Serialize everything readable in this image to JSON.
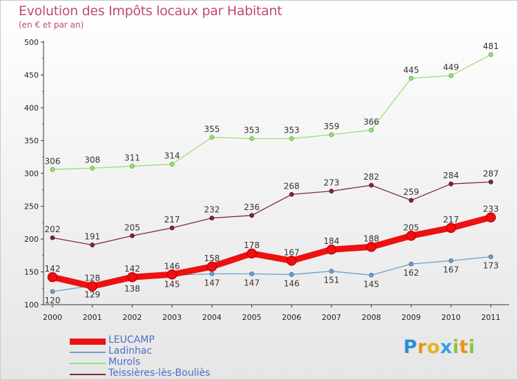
{
  "header": {
    "title": "Evolution des Impôts locaux par Habitant",
    "subtitle": "(en € et par an)"
  },
  "chart_data": {
    "type": "line",
    "title": "Evolution des Impôts locaux par Habitant",
    "subtitle": "(en € et par an)",
    "xlabel": "",
    "ylabel": "",
    "x": [
      "2000",
      "2001",
      "2002",
      "2003",
      "2004",
      "2005",
      "2006",
      "2007",
      "2008",
      "2009",
      "2010",
      "2011"
    ],
    "ylim": [
      100,
      500
    ],
    "yticks": [
      100,
      150,
      200,
      250,
      300,
      350,
      400,
      450,
      500
    ],
    "grid": false,
    "legend_position": "bottom-left",
    "series": [
      {
        "name": "LEUCAMP",
        "color": "#ee1111",
        "values": [
          142,
          128,
          142,
          146,
          158,
          178,
          167,
          184,
          188,
          205,
          217,
          233
        ]
      },
      {
        "name": "Ladinhac",
        "color": "#6a9fcc",
        "values": [
          120,
          129,
          138,
          145,
          147,
          147,
          146,
          151,
          145,
          162,
          167,
          173
        ]
      },
      {
        "name": "Murols",
        "color": "#99e07a",
        "values": [
          306,
          308,
          311,
          314,
          355,
          353,
          353,
          359,
          366,
          445,
          449,
          481
        ]
      },
      {
        "name": "Teissières-lès-Bouliès",
        "color": "#7a2a32",
        "values": [
          202,
          191,
          205,
          217,
          232,
          236,
          268,
          273,
          282,
          259,
          284,
          287
        ]
      }
    ]
  },
  "logo": {
    "letters": [
      "P",
      "r",
      "o",
      "x",
      "i",
      "t",
      "i"
    ]
  }
}
